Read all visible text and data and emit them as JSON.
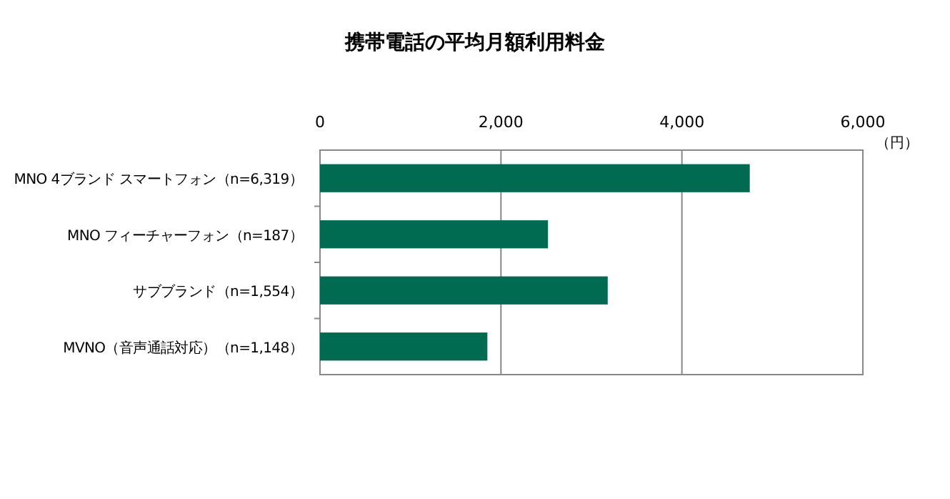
{
  "chart_data": {
    "type": "bar",
    "orientation": "horizontal",
    "title": "携帯電話の平均月額利用料金",
    "xlabel": "（円）",
    "categories": [
      "MNO 4ブランド スマートフォン（n=6,319）",
      "MNO フィーチャーフォン（n=187）",
      "サブブランド（n=1,554）",
      "MVNO（音声通話対応）（n=1,148）"
    ],
    "values": [
      4750,
      2520,
      3180,
      1850
    ],
    "color": "#006b50",
    "xlim": [
      0,
      6000
    ],
    "xticks": [
      {
        "value": 0,
        "label": "0"
      },
      {
        "value": 2000,
        "label": "2,000"
      },
      {
        "value": 4000,
        "label": "4,000"
      },
      {
        "value": 6000,
        "label": "6,000"
      }
    ],
    "grid": "x"
  }
}
